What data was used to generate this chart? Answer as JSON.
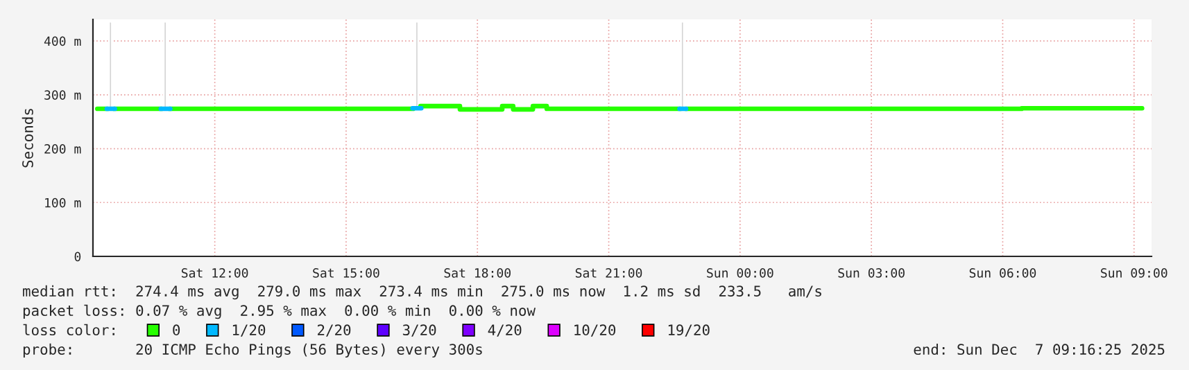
{
  "chart_data": {
    "type": "step",
    "ylabel": "Seconds",
    "xlim": [
      "2025-12-06T09:13",
      "2025-12-07T09:24"
    ],
    "xticks": [
      {
        "value": "2025-12-06T12:00",
        "label": "Sat 12:00"
      },
      {
        "value": "2025-12-06T15:00",
        "label": "Sat 15:00"
      },
      {
        "value": "2025-12-06T18:00",
        "label": "Sat 18:00"
      },
      {
        "value": "2025-12-06T21:00",
        "label": "Sat 21:00"
      },
      {
        "value": "2025-12-07T00:00",
        "label": "Sun 00:00"
      },
      {
        "value": "2025-12-07T03:00",
        "label": "Sun 03:00"
      },
      {
        "value": "2025-12-07T06:00",
        "label": "Sun 06:00"
      },
      {
        "value": "2025-12-07T09:00",
        "label": "Sun 09:00"
      }
    ],
    "ylim": [
      0,
      440
    ],
    "yticks": [
      0,
      {
        "value": 100,
        "label": "100 m"
      },
      {
        "value": 200,
        "label": "200 m"
      },
      {
        "value": 300,
        "label": "300 m"
      },
      {
        "value": 400,
        "label": "400 m"
      }
    ],
    "grid": true,
    "legend": "bottom",
    "legend_title": "loss color:",
    "series": [
      {
        "type": "bar",
        "color": "#d4d4d4",
        "x": [
          "2025-12-06T09:37",
          "2025-12-06T10:52",
          "2025-12-06T16:37",
          "2025-12-06T22:41"
        ],
        "base": [
          274,
          274,
          275,
          274
        ],
        "values": [
          162,
          162,
          161,
          162
        ]
      },
      {
        "name": "0",
        "color": "#26ff00",
        "x": [
          "2025-12-06T09:19",
          "2025-12-06T09:32",
          "2025-12-06T09:33",
          "2025-12-06T09:42",
          "2025-12-06T10:46",
          "2025-12-06T10:47",
          "2025-12-06T10:58",
          "2025-12-06T16:31",
          "2025-12-06T16:32",
          "2025-12-06T16:42",
          "2025-12-06T17:36",
          "2025-12-06T18:34",
          "2025-12-06T18:49",
          "2025-12-06T19:16",
          "2025-12-06T19:35",
          "2025-12-06T22:37",
          "2025-12-06T22:38",
          "2025-12-06T22:46",
          "2025-12-07T06:26",
          "2025-12-07T09:11"
        ],
        "values": [
          274,
          274,
          null,
          274,
          274,
          null,
          274,
          274,
          null,
          279,
          273,
          279,
          273,
          279,
          274,
          274,
          null,
          274,
          275,
          275
        ]
      },
      {
        "name": "1/20",
        "color": "#00b8ff",
        "x": [
          "2025-12-06T09:32",
          "2025-12-06T09:42",
          "2025-12-06T09:43",
          "2025-12-06T10:46",
          "2025-12-06T10:58",
          "2025-12-06T10:59",
          "2025-12-06T16:31",
          "2025-12-06T16:42",
          "2025-12-06T16:43",
          "2025-12-06T22:37",
          "2025-12-06T22:46"
        ],
        "values": [
          274,
          274,
          null,
          274,
          274,
          null,
          275,
          275,
          null,
          274,
          274
        ]
      },
      {
        "name": "2/20",
        "color": "#0059ff"
      },
      {
        "name": "3/20",
        "color": "#5e00ff"
      },
      {
        "name": "4/20",
        "color": "#7e00ff"
      },
      {
        "name": "10/20",
        "color": "#dd00ff"
      },
      {
        "name": "19/20",
        "color": "#ff0000"
      }
    ],
    "annotations": [
      "median rtt:  274.4 ms avg  279.0 ms max  273.4 ms min  275.0 ms now  1.2 ms sd  233.5   am/s",
      "packet loss: 0.07 % avg  2.95 % max  0.00 % min  0.00 % now",
      "probe:       20 ICMP Echo Pings (56 Bytes) every 300s",
      "end: Sun Dec  7 09:16:25 2025"
    ]
  }
}
